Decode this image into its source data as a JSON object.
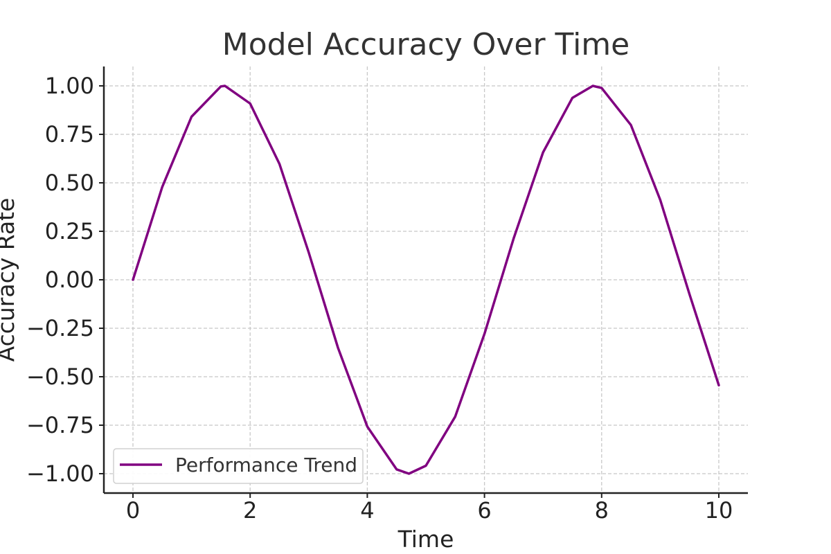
{
  "chart_data": {
    "type": "line",
    "title": "Model Accuracy Over Time",
    "xlabel": "Time",
    "ylabel": "Accuracy Rate",
    "xlim": [
      -0.5,
      10.5
    ],
    "ylim": [
      -1.1,
      1.1
    ],
    "x_ticks": [
      0,
      2,
      4,
      6,
      8,
      10
    ],
    "x_tick_labels": [
      "0",
      "2",
      "4",
      "6",
      "8",
      "10"
    ],
    "y_ticks": [
      1.0,
      0.75,
      0.5,
      0.25,
      0.0,
      -0.25,
      -0.5,
      -0.75,
      -1.0
    ],
    "y_tick_labels": [
      "1.00",
      "0.75",
      "0.50",
      "0.25",
      "0.00",
      "−0.25",
      "−0.50",
      "−0.75",
      "−1.00"
    ],
    "grid": true,
    "legend_position": "bottom-left",
    "series": [
      {
        "name": "Performance Trend",
        "color": "#800080",
        "x": [
          0,
          0.5,
          1,
          1.5,
          1.57,
          2,
          2.5,
          3,
          3.5,
          4,
          4.5,
          4.71,
          5,
          5.5,
          6,
          6.5,
          7,
          7.5,
          7.85,
          8,
          8.5,
          9,
          9.5,
          10
        ],
        "y": [
          0,
          0.479,
          0.841,
          0.997,
          1.0,
          0.909,
          0.598,
          0.141,
          -0.351,
          -0.757,
          -0.978,
          -1.0,
          -0.959,
          -0.706,
          -0.279,
          0.215,
          0.657,
          0.938,
          1.0,
          0.989,
          0.798,
          0.412,
          -0.075,
          -0.544
        ]
      }
    ]
  }
}
